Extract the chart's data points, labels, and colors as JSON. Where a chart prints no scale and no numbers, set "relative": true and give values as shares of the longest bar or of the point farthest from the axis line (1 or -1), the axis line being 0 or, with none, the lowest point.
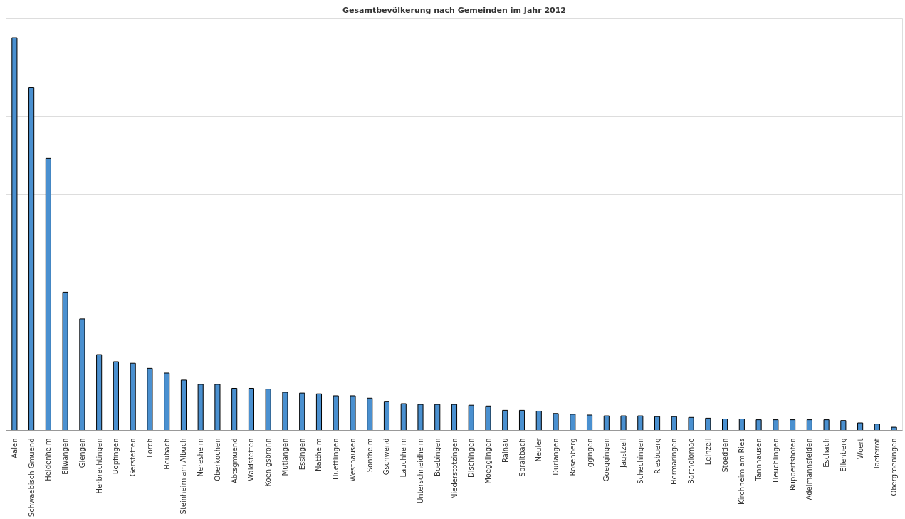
{
  "chart_data": {
    "type": "bar",
    "title": "Gesamtbevölkerung nach Gemeinden im Jahr 2012",
    "relative": true,
    "grid": "y",
    "color": "#4a90d0",
    "categories": [
      "Aalen",
      "Schwaebisch Gmuend",
      "Heidenheim",
      "Ellwangen",
      "Giengen",
      "Herbrechtingen",
      "Bopfingen",
      "Gerstetten",
      "Lorch",
      "Heubach",
      "Steinheim am Albuch",
      "Neresheim",
      "Oberkochen",
      "Abtsgmuend",
      "Waldstetten",
      "Koenigsbronn",
      "Mutlangen",
      "Essingen",
      "Nattheim",
      "Huettlingen",
      "Westhausen",
      "Sontheim",
      "Gschwend",
      "Lauchheim",
      "Unterschneidheim",
      "Boebingen",
      "Niederstotzingen",
      "Dischingen",
      "Moegglingen",
      "Rainau",
      "Spraitbach",
      "Neuler",
      "Durlangen",
      "Rosenberg",
      "Iggingen",
      "Goeggingen",
      "Jagstzell",
      "Schechingen",
      "Riesbuerg",
      "Hermaringen",
      "Bartholomae",
      "Leinzell",
      "Stoedtlen",
      "Kirchheim am Ries",
      "Tannhausen",
      "Heuchlingen",
      "Ruppertshofen",
      "Adelmannsfelden",
      "Eschach",
      "Ellenberg",
      "Woert",
      "Taeferrot",
      "Obergroeningen"
    ],
    "values": [
      1.0,
      0.874,
      0.693,
      0.352,
      0.284,
      0.193,
      0.175,
      0.171,
      0.158,
      0.146,
      0.128,
      0.117,
      0.117,
      0.107,
      0.107,
      0.105,
      0.097,
      0.095,
      0.093,
      0.088,
      0.088,
      0.082,
      0.074,
      0.068,
      0.066,
      0.066,
      0.066,
      0.064,
      0.062,
      0.051,
      0.051,
      0.049,
      0.043,
      0.041,
      0.039,
      0.037,
      0.037,
      0.037,
      0.035,
      0.035,
      0.033,
      0.031,
      0.029,
      0.029,
      0.027,
      0.027,
      0.027,
      0.027,
      0.027,
      0.025,
      0.019,
      0.016,
      0.008
    ]
  }
}
